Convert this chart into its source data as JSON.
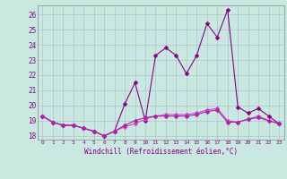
{
  "title": "",
  "xlabel": "Windchill (Refroidissement éolien,°C)",
  "ylabel": "",
  "xlim": [
    -0.5,
    23.5
  ],
  "ylim": [
    17.75,
    26.6
  ],
  "xticks": [
    0,
    1,
    2,
    3,
    4,
    5,
    6,
    7,
    8,
    9,
    10,
    11,
    12,
    13,
    14,
    15,
    16,
    17,
    18,
    19,
    20,
    21,
    22,
    23
  ],
  "yticks": [
    18,
    19,
    20,
    21,
    22,
    23,
    24,
    25,
    26
  ],
  "bg_color": "#c8e8e0",
  "line_color_main": "#880088",
  "line_color_alt": "#cc44cc",
  "grid_color": "#aabbcc",
  "tick_color": "#880088",
  "series": [
    [
      19.3,
      18.9,
      18.7,
      18.7,
      18.5,
      18.3,
      18.0,
      18.3,
      20.1,
      21.5,
      19.0,
      23.3,
      23.8,
      23.3,
      22.1,
      23.3,
      25.4,
      24.5,
      26.3,
      19.9,
      19.5,
      19.8,
      19.3,
      18.8
    ],
    [
      19.3,
      18.9,
      18.7,
      18.7,
      18.5,
      18.3,
      18.0,
      18.3,
      18.6,
      18.8,
      19.1,
      19.3,
      19.4,
      19.4,
      19.4,
      19.5,
      19.7,
      19.8,
      19.0,
      18.9,
      19.1,
      19.3,
      19.0,
      18.8
    ],
    [
      19.3,
      18.9,
      18.7,
      18.7,
      18.5,
      18.3,
      18.0,
      18.3,
      18.7,
      19.0,
      19.2,
      19.3,
      19.3,
      19.3,
      19.3,
      19.4,
      19.6,
      19.7,
      18.9,
      18.9,
      19.1,
      19.2,
      19.0,
      18.8
    ]
  ],
  "series_colors": [
    "#880088",
    "#cc44cc",
    "#aa22aa"
  ],
  "marker_size": 2.5
}
